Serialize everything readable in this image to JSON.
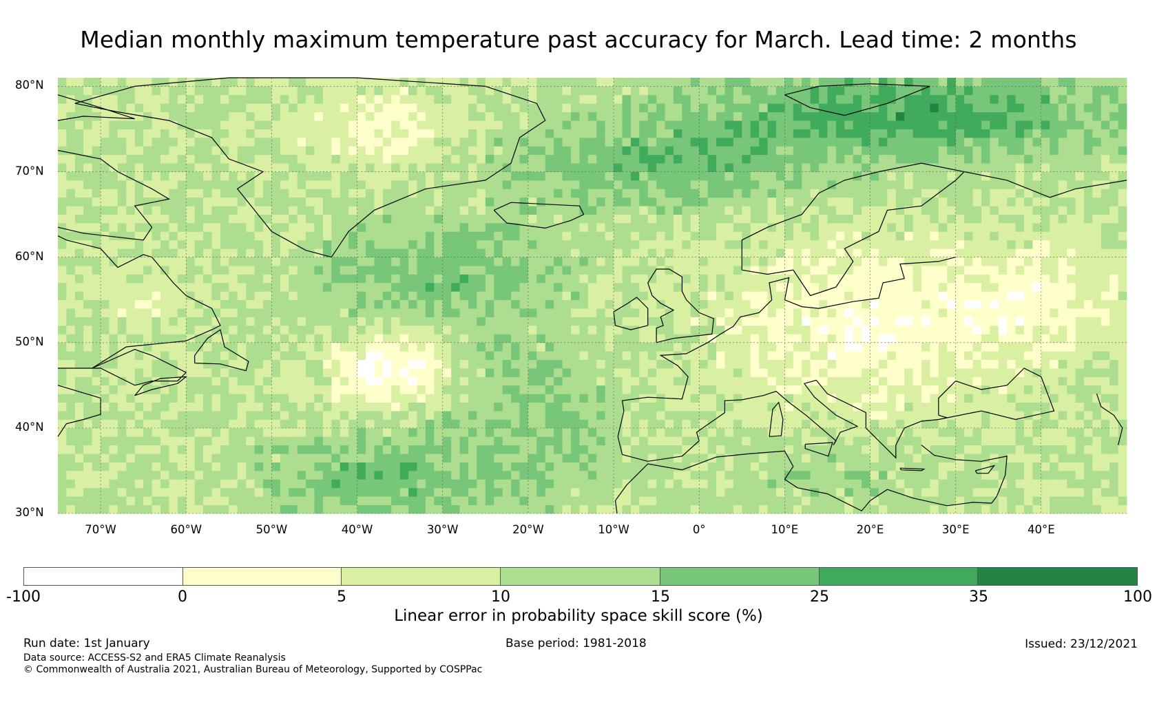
{
  "title": "Median monthly maximum temperature past accuracy for March. Lead time: 2 months",
  "map": {
    "lat_labels": [
      "80°N",
      "70°N",
      "60°N",
      "50°N",
      "40°N",
      "30°N"
    ],
    "lon_labels": [
      "70°W",
      "60°W",
      "50°W",
      "40°W",
      "30°W",
      "20°W",
      "10°W",
      "0°",
      "10°E",
      "20°E",
      "30°E",
      "40°E"
    ],
    "lat_values": [
      80,
      70,
      60,
      50,
      40,
      30
    ],
    "lon_values": [
      -70,
      -60,
      -50,
      -40,
      -30,
      -20,
      -10,
      0,
      10,
      20,
      30,
      40
    ],
    "extent": {
      "lon_min": -75,
      "lon_max": 50,
      "lat_min": 30,
      "lat_max": 81
    },
    "gridlines": true,
    "regions": [
      {
        "label": "Greenland",
        "lon": -42,
        "lat": 72
      },
      {
        "label": "Iceland",
        "lon": -19,
        "lat": 65
      },
      {
        "label": "Europe",
        "lon": 15,
        "lat": 50
      }
    ]
  },
  "colorbar": {
    "label": "Linear error in probability space skill score (%)",
    "ticks": [
      "-100",
      "0",
      "5",
      "10",
      "15",
      "25",
      "35",
      "100"
    ],
    "bins": [
      {
        "from": -100,
        "to": 0,
        "color": "#ffffff"
      },
      {
        "from": 0,
        "to": 5,
        "color": "#ffffcc"
      },
      {
        "from": 5,
        "to": 10,
        "color": "#d9f0a3"
      },
      {
        "from": 10,
        "to": 15,
        "color": "#addd8e"
      },
      {
        "from": 15,
        "to": 25,
        "color": "#78c679"
      },
      {
        "from": 25,
        "to": 35,
        "color": "#41ab5d"
      },
      {
        "from": 35,
        "to": 100,
        "color": "#238443"
      }
    ]
  },
  "footer": {
    "run_date": "Run date: 1st January",
    "base_period": "Base period: 1981-2018",
    "issued": "Issued: 23/12/2021",
    "data_source": "Data source: ACCESS-S2 and ERA5 Climate Reanalysis",
    "copyright": "© Commonwealth of Australia 2021, Australian Bureau of Meteorology, Supported by COSPPac"
  }
}
